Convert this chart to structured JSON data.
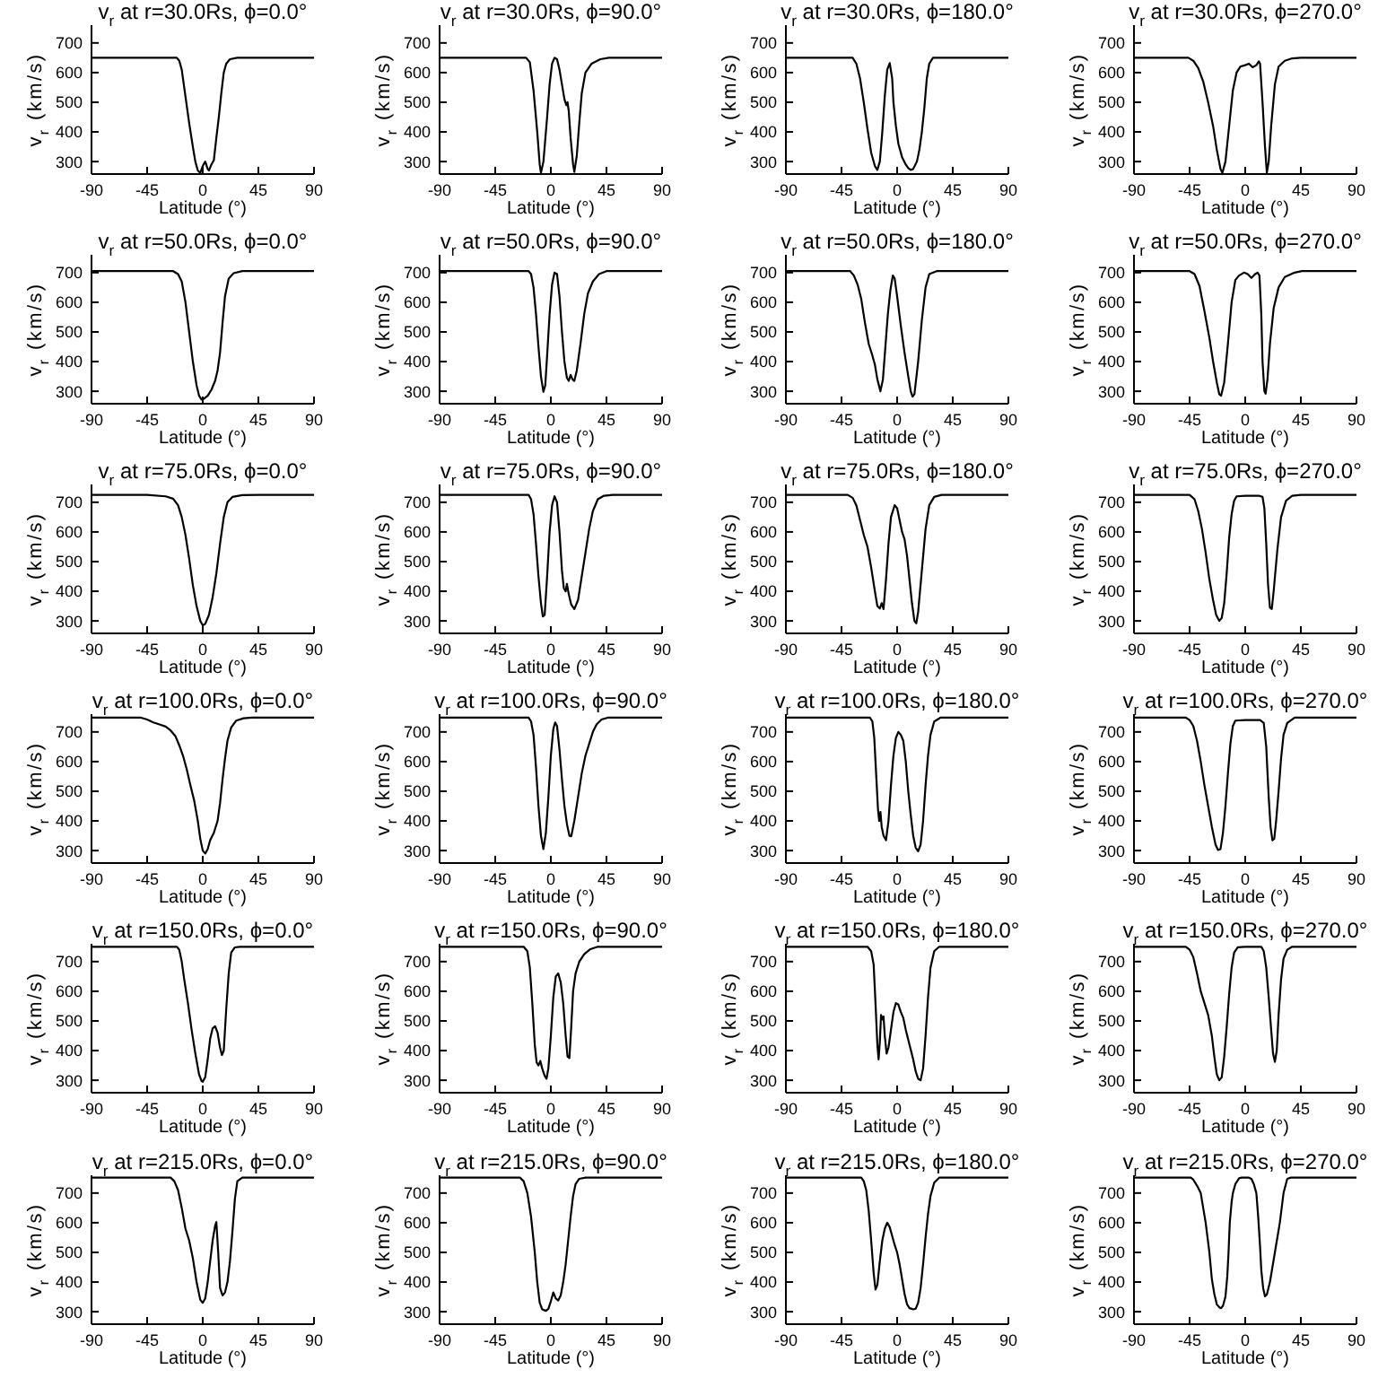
{
  "chart_data": [
    {
      "type": "line",
      "title": "v$_{r}$ at r=30.0Rs, ϕ=0.0°",
      "xlabel": "Latitude (°)",
      "ylabel": "v$_{r}$ (km/s)",
      "color": "#000000",
      "xlim": [
        -90,
        90
      ],
      "xticks": [
        -90,
        -45,
        0,
        45,
        90
      ],
      "ylim": [
        258,
        760
      ],
      "yticks": [
        300,
        400,
        500,
        600,
        700
      ],
      "x": [
        -90,
        -21,
        -19,
        -17,
        -14,
        -11,
        -8,
        -6,
        -4,
        -2,
        0,
        2,
        4,
        5,
        7,
        9,
        11,
        13,
        15,
        17,
        19,
        22,
        28,
        90
      ],
      "values": [
        650,
        650,
        640,
        610,
        520,
        430,
        350,
        300,
        270,
        262,
        285,
        300,
        275,
        270,
        290,
        305,
        380,
        450,
        530,
        600,
        630,
        645,
        650,
        650
      ]
    },
    {
      "type": "line",
      "title": "v$_{r}$ at r=30.0Rs, ϕ=90.0°",
      "xlabel": "Latitude (°)",
      "ylabel": "v$_{r}$ (km/s)",
      "color": "#000000",
      "xlim": [
        -90,
        90
      ],
      "xticks": [
        -90,
        -45,
        0,
        45,
        90
      ],
      "ylim": [
        258,
        760
      ],
      "yticks": [
        300,
        400,
        500,
        600,
        700
      ],
      "x": [
        -90,
        -20,
        -17,
        -14,
        -11,
        -9,
        -8,
        -6,
        -3,
        -1,
        1,
        3,
        5,
        7,
        9,
        11,
        12.5,
        13.5,
        14.5,
        16,
        18,
        19,
        21,
        23,
        25,
        28,
        33,
        40,
        47,
        90
      ],
      "values": [
        650,
        650,
        635,
        540,
        400,
        290,
        262,
        300,
        450,
        560,
        630,
        650,
        645,
        610,
        560,
        510,
        490,
        500,
        470,
        380,
        290,
        265,
        320,
        430,
        530,
        600,
        630,
        645,
        650,
        650
      ]
    },
    {
      "type": "line",
      "title": "v$_{r}$ at r=30.0Rs, ϕ=180.0°",
      "xlabel": "Latitude (°)",
      "ylabel": "v$_{r}$ (km/s)",
      "color": "#000000",
      "xlim": [
        -90,
        90
      ],
      "xticks": [
        -90,
        -45,
        0,
        45,
        90
      ],
      "ylim": [
        258,
        760
      ],
      "yticks": [
        300,
        400,
        500,
        600,
        700
      ],
      "x": [
        -90,
        -36,
        -33,
        -30,
        -27,
        -24,
        -21,
        -18,
        -16,
        -14,
        -12,
        -10,
        -8,
        -6,
        -4,
        -3,
        -1,
        1,
        4,
        7,
        9,
        11,
        13,
        16,
        18,
        20,
        22,
        24,
        26,
        29,
        90
      ],
      "values": [
        650,
        650,
        630,
        580,
        500,
        410,
        330,
        285,
        272,
        300,
        400,
        520,
        610,
        632,
        580,
        500,
        420,
        360,
        315,
        290,
        278,
        272,
        275,
        300,
        340,
        400,
        480,
        580,
        630,
        650,
        650
      ]
    },
    {
      "type": "line",
      "title": "v$_{r}$ at r=30.0Rs, ϕ=270.0°",
      "xlabel": "Latitude (°)",
      "ylabel": "v$_{r}$ (km/s)",
      "color": "#000000",
      "xlim": [
        -90,
        90
      ],
      "xticks": [
        -90,
        -45,
        0,
        45,
        90
      ],
      "ylim": [
        258,
        760
      ],
      "yticks": [
        300,
        400,
        500,
        600,
        700
      ],
      "x": [
        -90,
        -46,
        -42,
        -38,
        -34,
        -30,
        -26,
        -23,
        -20,
        -18.5,
        -16,
        -13,
        -10,
        -7,
        -4,
        0,
        3,
        6,
        9,
        11,
        12,
        14,
        16,
        17.5,
        19,
        21,
        24,
        27,
        32,
        38,
        45,
        90
      ],
      "values": [
        650,
        650,
        640,
        615,
        570,
        500,
        420,
        340,
        275,
        262,
        300,
        420,
        540,
        600,
        620,
        625,
        630,
        618,
        625,
        638,
        630,
        500,
        350,
        262,
        300,
        420,
        560,
        620,
        640,
        648,
        650,
        650
      ]
    },
    {
      "type": "line",
      "title": "v$_{r}$ at r=50.0Rs, ϕ=0.0°",
      "xlabel": "Latitude (°)",
      "ylabel": "v$_{r}$ (km/s)",
      "color": "#000000",
      "xlim": [
        -90,
        90
      ],
      "xticks": [
        -90,
        -45,
        0,
        45,
        90
      ],
      "ylim": [
        258,
        760
      ],
      "yticks": [
        300,
        400,
        500,
        600,
        700
      ],
      "x": [
        -90,
        -24,
        -20,
        -17,
        -14,
        -11,
        -8,
        -5,
        -3,
        -1,
        1,
        4,
        7,
        10,
        12,
        14,
        16,
        18,
        21,
        25,
        32,
        90
      ],
      "values": [
        705,
        705,
        695,
        670,
        600,
        500,
        400,
        320,
        285,
        272,
        275,
        285,
        305,
        335,
        370,
        430,
        530,
        620,
        680,
        698,
        705,
        705
      ]
    },
    {
      "type": "line",
      "title": "v$_{r}$ at r=50.0Rs, ϕ=90.0°",
      "xlabel": "Latitude (°)",
      "ylabel": "v$_{r}$ (km/s)",
      "color": "#000000",
      "xlim": [
        -90,
        90
      ],
      "xticks": [
        -90,
        -45,
        0,
        45,
        90
      ],
      "ylim": [
        258,
        760
      ],
      "yticks": [
        300,
        400,
        500,
        600,
        700
      ],
      "x": [
        -90,
        -18,
        -16,
        -14,
        -12,
        -10,
        -8,
        -6,
        -4.5,
        -3,
        -1,
        1,
        3,
        5,
        7,
        9,
        11,
        13,
        14.5,
        16,
        17.5,
        19,
        21,
        24,
        27,
        30,
        34,
        39,
        45,
        90
      ],
      "values": [
        705,
        705,
        695,
        650,
        560,
        450,
        350,
        298,
        320,
        420,
        560,
        660,
        700,
        695,
        620,
        500,
        400,
        345,
        335,
        355,
        340,
        335,
        370,
        460,
        560,
        630,
        670,
        695,
        705,
        705
      ]
    },
    {
      "type": "line",
      "title": "v$_{r}$ at r=50.0Rs, ϕ=180.0°",
      "xlabel": "Latitude (°)",
      "ylabel": "v$_{r}$ (km/s)",
      "color": "#000000",
      "xlim": [
        -90,
        90
      ],
      "xticks": [
        -90,
        -45,
        0,
        45,
        90
      ],
      "ylim": [
        258,
        760
      ],
      "yticks": [
        300,
        400,
        500,
        600,
        700
      ],
      "x": [
        -90,
        -38,
        -35,
        -32,
        -29,
        -26,
        -23,
        -20,
        -18,
        -16,
        -13.5,
        -11.5,
        -9.5,
        -7.5,
        -5.5,
        -3.5,
        -2,
        0,
        3,
        6,
        9,
        11,
        12.5,
        14,
        17,
        20,
        23,
        26,
        32,
        90
      ],
      "values": [
        705,
        705,
        690,
        660,
        610,
        530,
        460,
        420,
        390,
        340,
        300,
        340,
        450,
        560,
        640,
        690,
        680,
        620,
        520,
        430,
        350,
        300,
        282,
        290,
        400,
        540,
        650,
        695,
        705,
        705
      ]
    },
    {
      "type": "line",
      "title": "v$_{r}$ at r=50.0Rs, ϕ=270.0°",
      "xlabel": "Latitude (°)",
      "ylabel": "v$_{r}$ (km/s)",
      "color": "#000000",
      "xlim": [
        -90,
        90
      ],
      "xticks": [
        -90,
        -45,
        0,
        45,
        90
      ],
      "ylim": [
        258,
        760
      ],
      "yticks": [
        300,
        400,
        500,
        600,
        700
      ],
      "x": [
        -90,
        -45,
        -41,
        -37,
        -33,
        -29,
        -26,
        -23,
        -21,
        -19.5,
        -17,
        -14,
        -11,
        -8,
        -5,
        -1,
        2,
        5,
        8,
        10,
        11.5,
        13,
        14,
        15.5,
        16.5,
        18,
        20,
        23,
        27,
        32,
        40,
        46,
        90
      ],
      "values": [
        705,
        705,
        695,
        655,
        570,
        480,
        400,
        330,
        290,
        285,
        330,
        460,
        600,
        675,
        690,
        700,
        695,
        682,
        695,
        700,
        690,
        560,
        400,
        300,
        292,
        340,
        460,
        580,
        650,
        685,
        700,
        705,
        705
      ]
    },
    {
      "type": "line",
      "title": "v$_{r}$ at r=75.0Rs, ϕ=0.0°",
      "xlabel": "Latitude (°)",
      "ylabel": "v$_{r}$ (km/s)",
      "color": "#000000",
      "xlim": [
        -90,
        90
      ],
      "xticks": [
        -90,
        -45,
        0,
        45,
        90
      ],
      "ylim": [
        258,
        760
      ],
      "yticks": [
        300,
        400,
        500,
        600,
        700
      ],
      "x": [
        -90,
        -45,
        -30,
        -24,
        -20,
        -17,
        -14,
        -11,
        -8,
        -5,
        -2,
        0,
        2,
        5,
        8,
        11,
        14,
        17,
        20,
        24,
        32,
        45,
        90
      ],
      "values": [
        725,
        725,
        720,
        712,
        690,
        650,
        590,
        510,
        420,
        350,
        300,
        285,
        290,
        320,
        380,
        460,
        560,
        650,
        700,
        718,
        724,
        725,
        725
      ]
    },
    {
      "type": "line",
      "title": "v$_{r}$ at r=75.0Rs, ϕ=90.0°",
      "xlabel": "Latitude (°)",
      "ylabel": "v$_{r}$ (km/s)",
      "color": "#000000",
      "xlim": [
        -90,
        90
      ],
      "xticks": [
        -90,
        -45,
        0,
        45,
        90
      ],
      "ylim": [
        258,
        760
      ],
      "yticks": [
        300,
        400,
        500,
        600,
        700
      ],
      "x": [
        -90,
        -18,
        -16,
        -14,
        -12,
        -10,
        -8,
        -6.5,
        -5,
        -3,
        -1,
        1,
        3,
        5,
        7,
        9,
        10.5,
        12,
        13,
        14.5,
        16.5,
        19,
        22,
        25,
        28,
        31,
        34,
        38,
        43,
        50,
        90
      ],
      "values": [
        725,
        725,
        710,
        660,
        560,
        450,
        360,
        315,
        320,
        450,
        600,
        690,
        720,
        700,
        600,
        470,
        410,
        400,
        425,
        390,
        355,
        340,
        370,
        450,
        530,
        610,
        670,
        710,
        722,
        725,
        725
      ]
    },
    {
      "type": "line",
      "title": "v$_{r}$ at r=75.0Rs, ϕ=180.0°",
      "xlabel": "Latitude (°)",
      "ylabel": "v$_{r}$ (km/s)",
      "color": "#000000",
      "xlim": [
        -90,
        90
      ],
      "xticks": [
        -90,
        -45,
        0,
        45,
        90
      ],
      "ylim": [
        258,
        760
      ],
      "yticks": [
        300,
        400,
        500,
        600,
        700
      ],
      "x": [
        -90,
        -40,
        -36,
        -33,
        -30,
        -27,
        -24,
        -21,
        -18,
        -16,
        -14,
        -12.5,
        -11,
        -9,
        -7,
        -5,
        -2,
        0,
        2,
        4,
        6,
        8,
        10,
        12,
        14,
        15.5,
        17,
        20,
        23,
        26,
        30,
        36,
        90
      ],
      "values": [
        725,
        725,
        715,
        690,
        640,
        590,
        550,
        480,
        400,
        350,
        342,
        360,
        340,
        440,
        560,
        650,
        690,
        680,
        640,
        600,
        575,
        520,
        440,
        360,
        300,
        292,
        330,
        470,
        610,
        690,
        718,
        725,
        725
      ]
    },
    {
      "type": "line",
      "title": "v$_{r}$ at r=75.0Rs, ϕ=270.0°",
      "xlabel": "Latitude (°)",
      "ylabel": "v$_{r}$ (km/s)",
      "color": "#000000",
      "xlim": [
        -90,
        90
      ],
      "xticks": [
        -90,
        -45,
        0,
        45,
        90
      ],
      "ylim": [
        258,
        760
      ],
      "yticks": [
        300,
        400,
        500,
        600,
        700
      ],
      "x": [
        -90,
        -45,
        -41,
        -38,
        -35,
        -32,
        -29,
        -26,
        -23.5,
        -21,
        -19,
        -17,
        -15,
        -13,
        -11,
        -9,
        -7,
        0,
        8,
        11,
        14,
        15.5,
        17,
        18.5,
        20,
        21.5,
        23,
        26,
        29,
        33,
        38,
        45,
        90
      ],
      "values": [
        725,
        725,
        710,
        670,
        610,
        530,
        440,
        370,
        320,
        300,
        310,
        360,
        460,
        580,
        660,
        705,
        720,
        722,
        722,
        722,
        718,
        680,
        560,
        420,
        345,
        340,
        400,
        540,
        650,
        705,
        722,
        725,
        725
      ]
    },
    {
      "type": "line",
      "title": "v$_{r}$ at r=100.0Rs, ϕ=0.0°",
      "xlabel": "Latitude (°)",
      "ylabel": "v$_{r}$ (km/s)",
      "color": "#000000",
      "xlim": [
        -90,
        90
      ],
      "xticks": [
        -90,
        -45,
        0,
        45,
        90
      ],
      "ylim": [
        258,
        760
      ],
      "yticks": [
        300,
        400,
        500,
        600,
        700
      ],
      "x": [
        -90,
        -50,
        -45,
        -40,
        -35,
        -30,
        -26,
        -22,
        -19,
        -16,
        -13,
        -10,
        -7,
        -4,
        -2,
        0,
        2,
        4,
        6,
        9,
        12,
        14,
        16,
        18,
        20,
        23,
        27,
        33,
        40,
        90
      ],
      "values": [
        748,
        748,
        742,
        732,
        725,
        718,
        705,
        685,
        655,
        620,
        575,
        520,
        470,
        400,
        340,
        300,
        290,
        305,
        335,
        360,
        400,
        460,
        540,
        610,
        670,
        715,
        738,
        746,
        748,
        748
      ]
    },
    {
      "type": "line",
      "title": "v$_{r}$ at r=100.0Rs, ϕ=90.0°",
      "xlabel": "Latitude (°)",
      "ylabel": "v$_{r}$ (km/s)",
      "color": "#000000",
      "xlim": [
        -90,
        90
      ],
      "xticks": [
        -90,
        -45,
        0,
        45,
        90
      ],
      "ylim": [
        258,
        760
      ],
      "yticks": [
        300,
        400,
        500,
        600,
        700
      ],
      "x": [
        -90,
        -18,
        -16,
        -14,
        -12,
        -10,
        -8,
        -6,
        -4,
        -2,
        0,
        2,
        3.5,
        5,
        7,
        9,
        11,
        13,
        15,
        16.5,
        19,
        22,
        25,
        28,
        31,
        34,
        37,
        41,
        46,
        90
      ],
      "values": [
        748,
        748,
        735,
        690,
        580,
        450,
        350,
        305,
        360,
        480,
        620,
        710,
        732,
        720,
        640,
        540,
        450,
        390,
        350,
        348,
        400,
        480,
        560,
        620,
        660,
        700,
        725,
        742,
        748,
        748
      ]
    },
    {
      "type": "line",
      "title": "v$_{r}$ at r=100.0Rs, ϕ=180.0°",
      "xlabel": "Latitude (°)",
      "ylabel": "v$_{r}$ (km/s)",
      "color": "#000000",
      "xlim": [
        -90,
        90
      ],
      "xticks": [
        -90,
        -45,
        0,
        45,
        90
      ],
      "ylim": [
        258,
        760
      ],
      "yticks": [
        300,
        400,
        500,
        600,
        700
      ],
      "x": [
        -90,
        -22,
        -20,
        -18.5,
        -17,
        -15.5,
        -14.5,
        -13.5,
        -12.5,
        -11,
        -9,
        -7,
        -5,
        -3,
        -1,
        1,
        3,
        5,
        7,
        9,
        11,
        13,
        15,
        17,
        19,
        21,
        23,
        25,
        27,
        30,
        35,
        90
      ],
      "values": [
        748,
        748,
        735,
        680,
        560,
        440,
        400,
        430,
        380,
        350,
        335,
        400,
        520,
        620,
        680,
        700,
        690,
        670,
        600,
        500,
        420,
        350,
        310,
        298,
        320,
        400,
        520,
        620,
        690,
        735,
        748,
        748
      ]
    },
    {
      "type": "line",
      "title": "v$_{r}$ at r=100.0Rs, ϕ=270.0°",
      "xlabel": "Latitude (°)",
      "ylabel": "v$_{r}$ (km/s)",
      "color": "#000000",
      "xlim": [
        -90,
        90
      ],
      "xticks": [
        -90,
        -45,
        0,
        45,
        90
      ],
      "ylim": [
        258,
        760
      ],
      "yticks": [
        300,
        400,
        500,
        600,
        700
      ],
      "x": [
        -90,
        -48,
        -45,
        -42,
        -39,
        -36,
        -33,
        -30,
        -27,
        -24,
        -22,
        -20,
        -18,
        -16,
        -14,
        -12,
        -10,
        -8,
        0,
        12,
        15,
        17,
        19,
        20.5,
        22,
        23.5,
        25,
        27,
        29,
        31,
        34,
        40,
        90
      ],
      "values": [
        748,
        748,
        740,
        720,
        670,
        600,
        520,
        450,
        380,
        320,
        302,
        305,
        360,
        450,
        560,
        660,
        720,
        738,
        740,
        740,
        730,
        650,
        480,
        380,
        335,
        340,
        400,
        500,
        610,
        690,
        730,
        748,
        748
      ]
    },
    {
      "type": "line",
      "title": "v$_{r}$ at r=150.0Rs, ϕ=0.0°",
      "xlabel": "Latitude (°)",
      "ylabel": "v$_{r}$ (km/s)",
      "color": "#000000",
      "xlim": [
        -90,
        90
      ],
      "xticks": [
        -90,
        -45,
        0,
        45,
        90
      ],
      "ylim": [
        258,
        760
      ],
      "yticks": [
        300,
        400,
        500,
        600,
        700
      ],
      "x": [
        -90,
        -21,
        -19,
        -17,
        -15,
        -12,
        -9,
        -6,
        -3,
        -1,
        0,
        2,
        4,
        6,
        8,
        10,
        12,
        14,
        15.5,
        17,
        19,
        21,
        23,
        26,
        30,
        90
      ],
      "values": [
        750,
        750,
        740,
        700,
        640,
        560,
        470,
        390,
        320,
        298,
        295,
        310,
        370,
        440,
        475,
        482,
        460,
        410,
        385,
        400,
        540,
        660,
        730,
        748,
        750,
        750
      ]
    },
    {
      "type": "line",
      "title": "v$_{r}$ at r=150.0Rs, ϕ=90.0°",
      "xlabel": "Latitude (°)",
      "ylabel": "v$_{r}$ (km/s)",
      "color": "#000000",
      "xlim": [
        -90,
        90
      ],
      "xticks": [
        -90,
        -45,
        0,
        45,
        90
      ],
      "ylim": [
        258,
        760
      ],
      "yticks": [
        300,
        400,
        500,
        600,
        700
      ],
      "x": [
        -90,
        -22,
        -19,
        -17,
        -15,
        -13,
        -11.5,
        -10,
        -8.5,
        -7,
        -5,
        -3.5,
        -2,
        0,
        2,
        4,
        6,
        8,
        10,
        12,
        13.5,
        15,
        16.5,
        18,
        20,
        23,
        27,
        32,
        38,
        90
      ],
      "values": [
        750,
        750,
        735,
        680,
        560,
        420,
        360,
        350,
        365,
        340,
        315,
        305,
        340,
        450,
        580,
        650,
        660,
        630,
        560,
        450,
        380,
        375,
        480,
        600,
        660,
        700,
        725,
        742,
        750,
        750
      ]
    },
    {
      "type": "line",
      "title": "v$_{r}$ at r=150.0Rs, ϕ=180.0°",
      "xlabel": "Latitude (°)",
      "ylabel": "v$_{r}$ (km/s)",
      "color": "#000000",
      "xlim": [
        -90,
        90
      ],
      "xticks": [
        -90,
        -45,
        0,
        45,
        90
      ],
      "ylim": [
        258,
        760
      ],
      "yticks": [
        300,
        400,
        500,
        600,
        700
      ],
      "x": [
        -90,
        -24,
        -21,
        -19,
        -17.5,
        -16,
        -15,
        -14,
        -13,
        -12,
        -11,
        -10,
        -8.5,
        -7,
        -5,
        -3,
        -1,
        1,
        3,
        5,
        7,
        10,
        13,
        15,
        17,
        19,
        21,
        23,
        25,
        27,
        30,
        34,
        90
      ],
      "values": [
        750,
        750,
        735,
        690,
        560,
        420,
        370,
        430,
        520,
        505,
        515,
        450,
        390,
        410,
        470,
        530,
        560,
        555,
        530,
        510,
        470,
        420,
        370,
        330,
        305,
        300,
        340,
        450,
        580,
        680,
        735,
        750,
        750
      ]
    },
    {
      "type": "line",
      "title": "v$_{r}$ at r=150.0Rs, ϕ=270.0°",
      "xlabel": "Latitude (°)",
      "ylabel": "v$_{r}$ (km/s)",
      "color": "#000000",
      "xlim": [
        -90,
        90
      ],
      "xticks": [
        -90,
        -45,
        0,
        45,
        90
      ],
      "ylim": [
        258,
        760
      ],
      "yticks": [
        300,
        400,
        500,
        600,
        700
      ],
      "x": [
        -90,
        -48,
        -45,
        -42,
        -39,
        -36,
        -33,
        -30,
        -27,
        -25,
        -23,
        -21,
        -19,
        -17,
        -15,
        -13,
        -11,
        -9,
        -6,
        0,
        13,
        15,
        17,
        19,
        21,
        22.5,
        24,
        25.5,
        27,
        29,
        31,
        34,
        38,
        90
      ],
      "values": [
        750,
        750,
        740,
        715,
        660,
        600,
        560,
        520,
        450,
        380,
        320,
        300,
        310,
        380,
        480,
        590,
        680,
        730,
        748,
        750,
        750,
        735,
        680,
        580,
        470,
        390,
        362,
        400,
        520,
        640,
        710,
        740,
        750,
        750
      ]
    },
    {
      "type": "line",
      "title": "v$_{r}$ at r=215.0Rs, ϕ=0.0°",
      "xlabel": "Latitude (°)",
      "ylabel": "v$_{r}$ (km/s)",
      "color": "#000000",
      "xlim": [
        -90,
        90
      ],
      "xticks": [
        -90,
        -45,
        0,
        45,
        90
      ],
      "ylim": [
        258,
        760
      ],
      "yticks": [
        300,
        400,
        500,
        600,
        700
      ],
      "x": [
        -90,
        -26,
        -23,
        -20,
        -17,
        -14,
        -11,
        -8,
        -5,
        -2,
        0,
        2,
        4,
        6,
        8,
        10,
        11,
        12.5,
        14,
        16,
        18,
        20,
        22,
        24,
        26,
        28,
        32,
        90
      ],
      "values": [
        752,
        752,
        740,
        710,
        650,
        580,
        540,
        480,
        400,
        340,
        330,
        345,
        400,
        470,
        540,
        590,
        602,
        500,
        380,
        355,
        365,
        400,
        470,
        570,
        680,
        740,
        752,
        752
      ]
    },
    {
      "type": "line",
      "title": "v$_{r}$ at r=215.0Rs, ϕ=90.0°",
      "xlabel": "Latitude (°)",
      "ylabel": "v$_{r}$ (km/s)",
      "color": "#000000",
      "xlim": [
        -90,
        90
      ],
      "xticks": [
        -90,
        -45,
        0,
        45,
        90
      ],
      "ylim": [
        258,
        760
      ],
      "yticks": [
        300,
        400,
        500,
        600,
        700
      ],
      "x": [
        -90,
        -25,
        -22,
        -19,
        -16,
        -13,
        -11,
        -9,
        -7,
        -4,
        -2,
        0,
        2,
        4,
        6,
        8,
        10,
        12,
        14,
        16,
        18,
        20,
        23,
        28,
        90
      ],
      "values": [
        752,
        752,
        740,
        700,
        620,
        500,
        400,
        330,
        308,
        303,
        310,
        335,
        365,
        345,
        338,
        355,
        400,
        460,
        540,
        620,
        690,
        730,
        748,
        752,
        752
      ]
    },
    {
      "type": "line",
      "title": "v$_{r}$ at r=215.0Rs, ϕ=180.0°",
      "xlabel": "Latitude (°)",
      "ylabel": "v$_{r}$ (km/s)",
      "color": "#000000",
      "xlim": [
        -90,
        90
      ],
      "xticks": [
        -90,
        -45,
        0,
        45,
        90
      ],
      "ylim": [
        258,
        760
      ],
      "yticks": [
        300,
        400,
        500,
        600,
        700
      ],
      "x": [
        -90,
        -29,
        -27,
        -25,
        -23,
        -21,
        -19,
        -17.5,
        -16,
        -14,
        -12,
        -10,
        -8,
        -6,
        -4,
        -2,
        0,
        2,
        4,
        6,
        8,
        10,
        13,
        15,
        17,
        19,
        21,
        23,
        25,
        27,
        30,
        34,
        90
      ],
      "values": [
        752,
        752,
        740,
        710,
        640,
        540,
        430,
        375,
        390,
        470,
        540,
        580,
        600,
        585,
        555,
        525,
        500,
        460,
        410,
        360,
        325,
        312,
        308,
        310,
        330,
        380,
        460,
        550,
        630,
        690,
        735,
        752,
        752
      ]
    },
    {
      "type": "line",
      "title": "v$_{r}$ at r=215.0Rs, ϕ=270.0°",
      "xlabel": "Latitude (°)",
      "ylabel": "v$_{r}$ (km/s)",
      "color": "#000000",
      "xlim": [
        -90,
        90
      ],
      "xticks": [
        -90,
        -45,
        0,
        45,
        90
      ],
      "ylim": [
        258,
        760
      ],
      "yticks": [
        300,
        400,
        500,
        600,
        700
      ],
      "x": [
        -90,
        -44,
        -42,
        -39,
        -36,
        -34,
        -32,
        -30.5,
        -29,
        -27,
        -25,
        -23,
        -21,
        -19.5,
        -18,
        -16,
        -14.5,
        -13.5,
        -12.5,
        -11,
        -10,
        -8,
        -5,
        -3,
        3,
        5,
        7,
        9,
        10.5,
        12,
        13,
        14.5,
        16,
        17.5,
        20,
        24,
        28,
        31,
        34,
        37,
        90
      ],
      "values": [
        752,
        752,
        745,
        725,
        700,
        650,
        600,
        550,
        500,
        410,
        360,
        325,
        315,
        312,
        320,
        350,
        420,
        500,
        600,
        670,
        700,
        730,
        750,
        752,
        752,
        748,
        730,
        700,
        620,
        520,
        440,
        380,
        352,
        358,
        400,
        500,
        600,
        700,
        748,
        752,
        752
      ]
    }
  ]
}
